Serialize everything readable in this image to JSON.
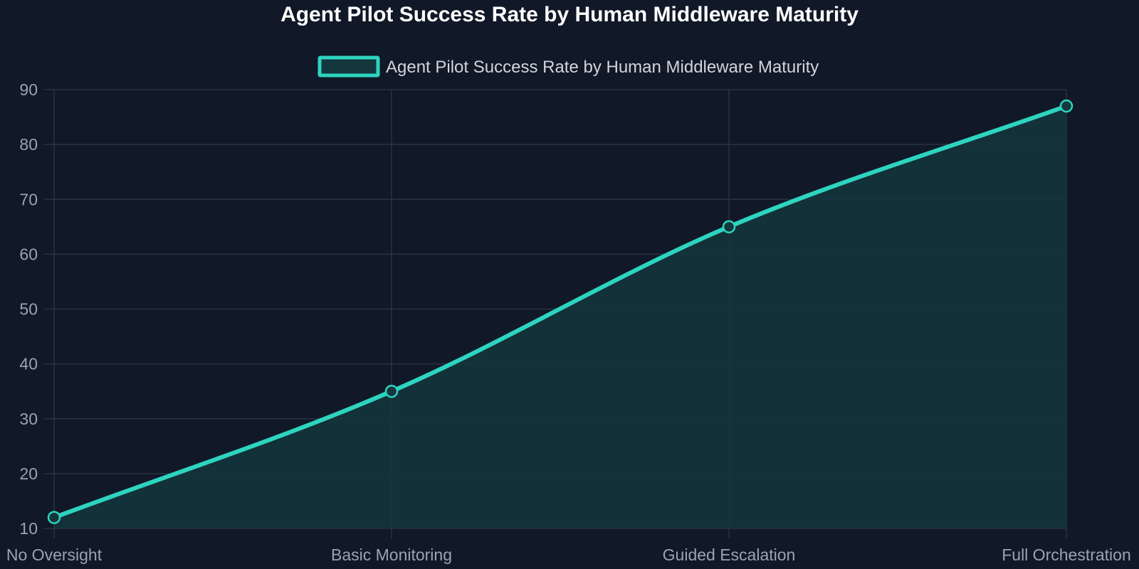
{
  "colors": {
    "background": "#111827",
    "grid": "#2a3342",
    "axis": "#3a4454",
    "title": "#ffffff",
    "legend_text": "#d1d5db",
    "tick_text": "#9ca3af",
    "series_line": "#2dd4bf",
    "series_fill": "#14363d"
  },
  "chart_data": {
    "type": "area",
    "title": "Agent Pilot Success Rate by Human Middleware Maturity",
    "xlabel": "",
    "ylabel": "",
    "categories": [
      "No Oversight",
      "Basic Monitoring",
      "Guided Escalation",
      "Full Orchestration"
    ],
    "series": [
      {
        "name": "Agent Pilot Success Rate by Human Middleware Maturity",
        "values": [
          12,
          35,
          65,
          87
        ]
      }
    ],
    "ylim": [
      10,
      90
    ],
    "yticks": [
      10,
      20,
      30,
      40,
      50,
      60,
      70,
      80,
      90
    ],
    "grid": true,
    "legend_position": "top-center"
  }
}
